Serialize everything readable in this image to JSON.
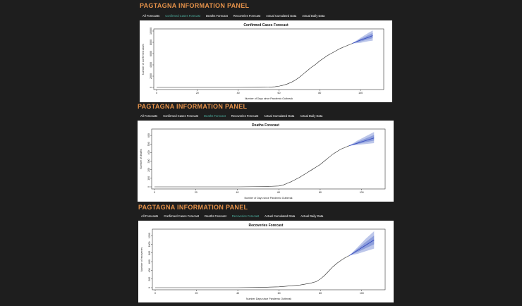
{
  "panels": [
    {
      "title": "PAGTAGNA INFORMATION PANEL",
      "tabs": [
        "All Forecasts",
        "Confirmed Cases Forecast",
        "Deaths Forecast",
        "Recoveries Forecast",
        "Actual Cumulated Data",
        "Actual Daily Data"
      ],
      "active_tab": 1
    },
    {
      "title": "PAGTAGNA INFORMATION PANEL",
      "tabs": [
        "All Forecasts",
        "Confirmed Cases Forecast",
        "Deaths Forecast",
        "Recoveries Forecast",
        "Actual Cumulated Data",
        "Actual Daily Data"
      ],
      "active_tab": 2
    },
    {
      "title": "PAGTAGNA INFORMATION PANEL",
      "tabs": [
        "All Forecasts",
        "Confirmed Cases Forecast",
        "Deaths Forecast",
        "Recoveries Forecast",
        "Actual Cumulated Data",
        "Actual Daily Data"
      ],
      "active_tab": 3
    }
  ],
  "colors": {
    "title": "#e5924a",
    "active_tab": "#4fb3a3",
    "tab": "#ffffff",
    "forecast_band": "#7b8fd6",
    "forecast_line": "#3a4fbf"
  },
  "chart_data": [
    {
      "type": "line",
      "title": "Confirmed Cases Forecast",
      "xlabel": "Number of Days since Pandemic Outbreak",
      "ylabel": "Number of confirmed cases",
      "xlim": [
        0,
        110
      ],
      "ylim": [
        0,
        10000
      ],
      "xticks": [
        0,
        20,
        40,
        60,
        80,
        100
      ],
      "yticks": [
        0,
        2000,
        4000,
        6000,
        8000,
        10000
      ],
      "x": [
        0,
        10,
        20,
        30,
        40,
        50,
        55,
        58,
        60,
        62,
        64,
        66,
        68,
        70,
        72,
        74,
        76,
        78,
        80,
        82,
        84,
        86,
        88,
        90,
        92,
        94,
        96
      ],
      "values": [
        0,
        0,
        0,
        0,
        0,
        20,
        60,
        120,
        220,
        380,
        600,
        900,
        1300,
        1800,
        2400,
        3000,
        3600,
        4100,
        4700,
        5200,
        5700,
        6100,
        6500,
        6900,
        7200,
        7500,
        7800
      ],
      "forecast": {
        "x": [
          96,
          100,
          104,
          106
        ],
        "mean": [
          7800,
          8400,
          8900,
          9200
        ],
        "lower": [
          7800,
          7900,
          8200,
          8300
        ],
        "upper": [
          7800,
          8800,
          9700,
          10100
        ]
      }
    },
    {
      "type": "line",
      "title": "Deaths Forecast",
      "xlabel": "Number of Days since Pandemic Outbreak",
      "ylabel": "Number of deaths",
      "xlim": [
        0,
        110
      ],
      "ylim": [
        0,
        650
      ],
      "xticks": [
        0,
        20,
        40,
        60,
        80,
        100
      ],
      "yticks": [
        0,
        100,
        200,
        300,
        400,
        500,
        600
      ],
      "x": [
        0,
        10,
        20,
        30,
        40,
        50,
        55,
        60,
        62,
        64,
        66,
        68,
        70,
        72,
        74,
        76,
        78,
        80,
        82,
        84,
        86,
        88,
        90,
        92,
        94
      ],
      "values": [
        0,
        0,
        0,
        0,
        0,
        2,
        5,
        10,
        20,
        40,
        60,
        85,
        110,
        140,
        170,
        200,
        230,
        260,
        300,
        340,
        380,
        410,
        440,
        460,
        480
      ],
      "forecast": {
        "x": [
          94,
          98,
          102,
          106
        ],
        "mean": [
          480,
          510,
          540,
          570
        ],
        "lower": [
          480,
          490,
          500,
          510
        ],
        "upper": [
          480,
          540,
          590,
          640
        ]
      }
    },
    {
      "type": "line",
      "title": "Recoveries Forecast",
      "xlabel": "Number Days since Pandemic Outbreak",
      "ylabel": "Number of recoveries",
      "xlim": [
        0,
        110
      ],
      "ylim": [
        0,
        1300
      ],
      "xticks": [
        0,
        20,
        40,
        60,
        80,
        100
      ],
      "yticks": [
        0,
        200,
        400,
        600,
        800,
        1000,
        1200
      ],
      "x": [
        0,
        10,
        20,
        30,
        40,
        50,
        60,
        65,
        70,
        75,
        78,
        80,
        82,
        84,
        86,
        88,
        90,
        92,
        94
      ],
      "values": [
        0,
        0,
        0,
        0,
        0,
        5,
        20,
        40,
        60,
        100,
        140,
        200,
        280,
        380,
        480,
        560,
        630,
        690,
        740
      ],
      "forecast": {
        "x": [
          94,
          98,
          102,
          106
        ],
        "mean": [
          740,
          860,
          980,
          1100
        ],
        "lower": [
          740,
          780,
          840,
          900
        ],
        "upper": [
          740,
          930,
          1130,
          1300
        ]
      }
    }
  ]
}
